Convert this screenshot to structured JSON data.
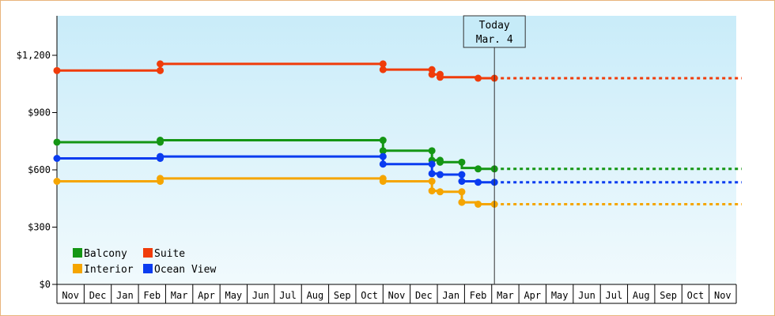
{
  "chart_data": {
    "type": "line",
    "title": "",
    "xlabel": "",
    "ylabel": "",
    "y_ticks": [
      "$0",
      "$300",
      "$600",
      "$900",
      "$1,200"
    ],
    "y_tick_values": [
      0,
      300,
      600,
      900,
      1200
    ],
    "ylim": [
      0,
      1400
    ],
    "months": [
      "Nov",
      "Dec",
      "Jan",
      "Feb",
      "Mar",
      "Apr",
      "May",
      "Jun",
      "Jul",
      "Aug",
      "Sep",
      "Oct",
      "Nov",
      "Dec",
      "Jan",
      "Feb",
      "Mar",
      "Apr",
      "May",
      "Jun",
      "Jul",
      "Aug",
      "Sep",
      "Oct",
      "Nov"
    ],
    "today_marker": {
      "line1": "Today",
      "line2": "Mar. 4",
      "month_index": 16.1
    },
    "legend": {
      "placement": "bottom-left"
    },
    "grid": false,
    "series": [
      {
        "name": "Suite",
        "color": "#f03c0a",
        "points": [
          [
            0,
            1120
          ],
          [
            3.8,
            1120
          ],
          [
            3.8,
            1155
          ],
          [
            12.0,
            1155
          ],
          [
            12.0,
            1125
          ],
          [
            13.8,
            1125
          ],
          [
            13.8,
            1100
          ],
          [
            14.1,
            1100
          ],
          [
            14.1,
            1085
          ],
          [
            15.0,
            1085
          ],
          [
            15.5,
            1085
          ],
          [
            15.5,
            1080
          ],
          [
            16.1,
            1080
          ]
        ],
        "markers": [
          [
            0,
            1120
          ],
          [
            3.8,
            1120
          ],
          [
            3.8,
            1155
          ],
          [
            12.0,
            1155
          ],
          [
            12.0,
            1125
          ],
          [
            13.8,
            1125
          ],
          [
            13.8,
            1100
          ],
          [
            14.1,
            1100
          ],
          [
            14.1,
            1085
          ],
          [
            15.5,
            1080
          ],
          [
            16.1,
            1080
          ]
        ],
        "forecast": [
          [
            16.1,
            1080
          ],
          [
            25.2,
            1080
          ]
        ]
      },
      {
        "name": "Balcony",
        "color": "#149614",
        "points": [
          [
            0,
            745
          ],
          [
            3.8,
            745
          ],
          [
            3.8,
            755
          ],
          [
            12.0,
            755
          ],
          [
            12.0,
            700
          ],
          [
            13.8,
            700
          ],
          [
            13.8,
            650
          ],
          [
            14.1,
            650
          ],
          [
            14.1,
            640
          ],
          [
            14.9,
            640
          ],
          [
            14.9,
            610
          ],
          [
            15.5,
            610
          ],
          [
            15.5,
            605
          ],
          [
            16.1,
            605
          ]
        ],
        "markers": [
          [
            0,
            745
          ],
          [
            3.8,
            745
          ],
          [
            3.8,
            755
          ],
          [
            12.0,
            755
          ],
          [
            12.0,
            700
          ],
          [
            13.8,
            700
          ],
          [
            13.8,
            650
          ],
          [
            14.1,
            650
          ],
          [
            14.1,
            640
          ],
          [
            14.9,
            640
          ],
          [
            15.5,
            605
          ],
          [
            16.1,
            605
          ]
        ],
        "forecast": [
          [
            16.1,
            605
          ],
          [
            25.2,
            605
          ]
        ]
      },
      {
        "name": "Ocean View",
        "color": "#0a3cf0",
        "points": [
          [
            0,
            660
          ],
          [
            3.8,
            660
          ],
          [
            3.8,
            670
          ],
          [
            12.0,
            670
          ],
          [
            12.0,
            630
          ],
          [
            13.8,
            630
          ],
          [
            13.8,
            580
          ],
          [
            14.1,
            580
          ],
          [
            14.1,
            575
          ],
          [
            14.9,
            575
          ],
          [
            14.9,
            540
          ],
          [
            15.5,
            540
          ],
          [
            15.5,
            535
          ],
          [
            16.1,
            535
          ]
        ],
        "markers": [
          [
            0,
            660
          ],
          [
            3.8,
            660
          ],
          [
            3.8,
            670
          ],
          [
            12.0,
            670
          ],
          [
            12.0,
            630
          ],
          [
            13.8,
            630
          ],
          [
            13.8,
            580
          ],
          [
            14.1,
            575
          ],
          [
            14.9,
            575
          ],
          [
            14.9,
            540
          ],
          [
            15.5,
            535
          ],
          [
            16.1,
            535
          ]
        ],
        "forecast": [
          [
            16.1,
            535
          ],
          [
            25.2,
            535
          ]
        ]
      },
      {
        "name": "Interior",
        "color": "#f5a500",
        "points": [
          [
            0,
            540
          ],
          [
            3.8,
            540
          ],
          [
            3.8,
            555
          ],
          [
            12.0,
            555
          ],
          [
            12.0,
            540
          ],
          [
            13.8,
            540
          ],
          [
            13.8,
            490
          ],
          [
            14.1,
            490
          ],
          [
            14.1,
            485
          ],
          [
            14.9,
            485
          ],
          [
            14.9,
            430
          ],
          [
            15.5,
            430
          ],
          [
            15.5,
            420
          ],
          [
            16.1,
            420
          ]
        ],
        "markers": [
          [
            0,
            540
          ],
          [
            3.8,
            540
          ],
          [
            3.8,
            555
          ],
          [
            12.0,
            555
          ],
          [
            12.0,
            540
          ],
          [
            13.8,
            540
          ],
          [
            13.8,
            490
          ],
          [
            14.1,
            485
          ],
          [
            14.9,
            485
          ],
          [
            14.9,
            430
          ],
          [
            15.5,
            420
          ],
          [
            16.1,
            420
          ]
        ],
        "forecast": [
          [
            16.1,
            420
          ],
          [
            25.2,
            420
          ]
        ]
      }
    ],
    "legend_order": [
      "Balcony",
      "Suite",
      "Interior",
      "Ocean View"
    ]
  }
}
